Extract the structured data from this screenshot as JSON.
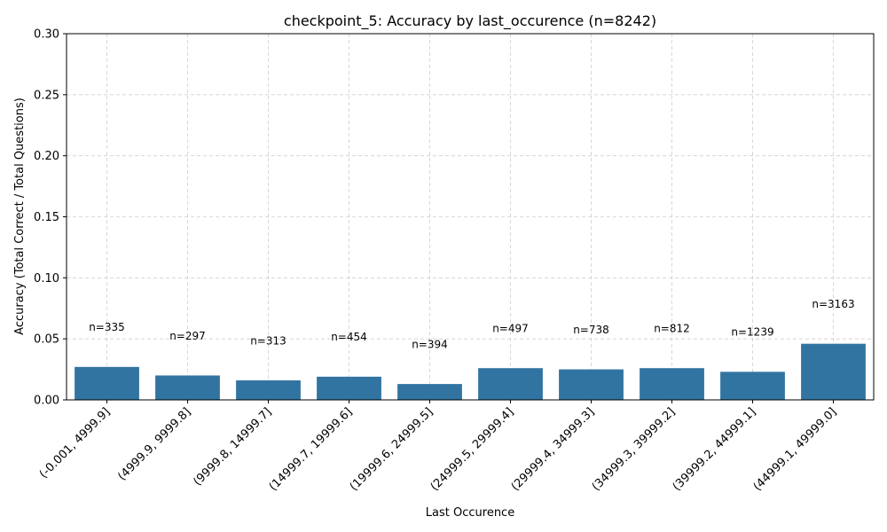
{
  "chart_data": {
    "type": "bar",
    "title": "checkpoint_5: Accuracy by last_occurence (n=8242)",
    "xlabel": "Last Occurence",
    "ylabel": "Accuracy (Total Correct / Total Questions)",
    "ylim": [
      0,
      0.3
    ],
    "y_ticks": [
      "0.00",
      "0.05",
      "0.10",
      "0.15",
      "0.20",
      "0.25",
      "0.30"
    ],
    "grid": true,
    "bar_color": "#3274a1",
    "categories": [
      "(-0.001, 4999.9]",
      "(4999.9, 9999.8]",
      "(9999.8, 14999.7]",
      "(14999.7, 19999.6]",
      "(19999.6, 24999.5]",
      "(24999.5, 29999.4]",
      "(29999.4, 34999.3]",
      "(34999.3, 39999.2]",
      "(39999.2, 44999.1]",
      "(44999.1, 49999.0]"
    ],
    "values": [
      0.027,
      0.02,
      0.016,
      0.019,
      0.013,
      0.026,
      0.025,
      0.026,
      0.023,
      0.046
    ],
    "annotations": [
      "n=335",
      "n=297",
      "n=313",
      "n=454",
      "n=394",
      "n=497",
      "n=738",
      "n=812",
      "n=1239",
      "n=3163"
    ]
  }
}
